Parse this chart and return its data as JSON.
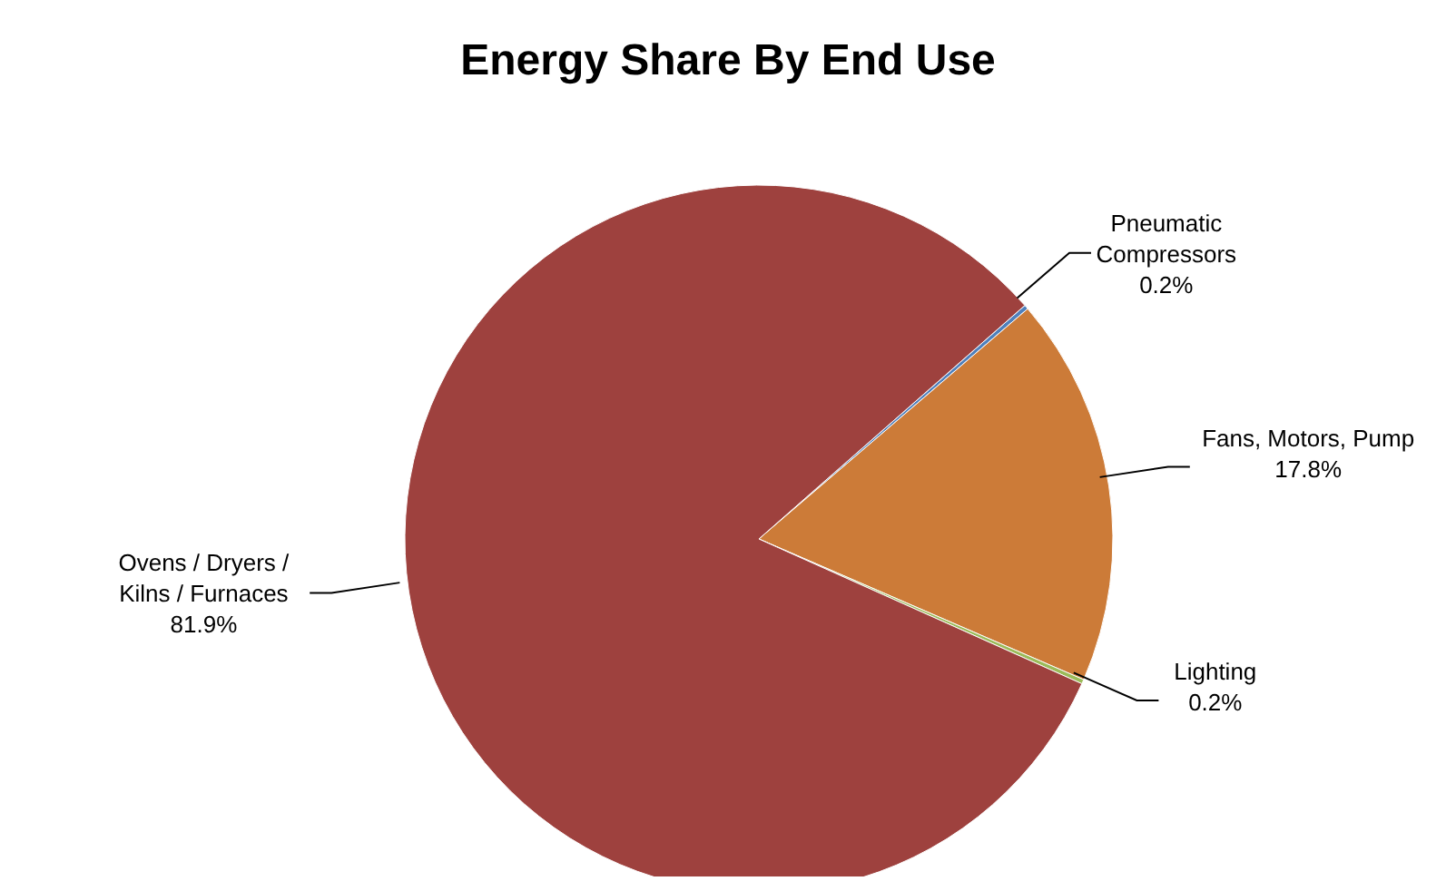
{
  "chart_data": {
    "type": "pie",
    "title": "Energy Share By End Use",
    "categories": [
      "Pneumatic Compressors",
      "Fans, Motors, Pump",
      "Lighting",
      "Ovens / Dryers / Kilns / Furnaces"
    ],
    "values": [
      0.2,
      17.8,
      0.2,
      81.9
    ],
    "value_labels": [
      "0.2%",
      "17.8%",
      "0.2%",
      "81.9%"
    ],
    "colors": [
      "#4f81bd",
      "#cc7b38",
      "#9bbb59",
      "#9e413e"
    ]
  }
}
